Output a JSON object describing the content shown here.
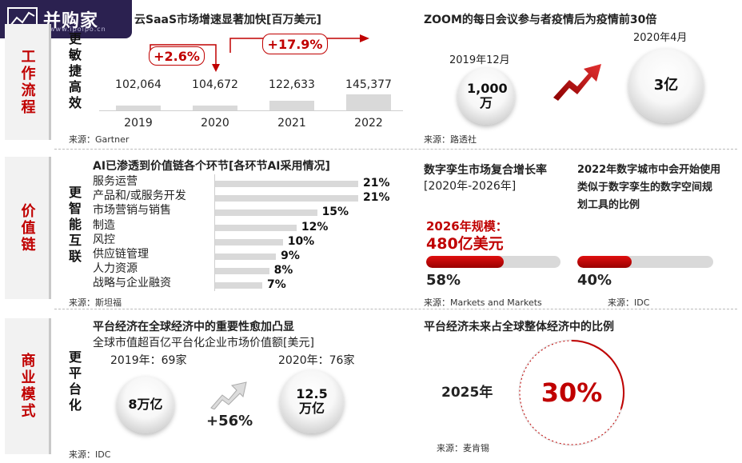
{
  "logo": {
    "text": "并购家",
    "url": "www.ipoipo.cn"
  },
  "sections": {
    "workflow": {
      "tab": "工作流程",
      "vertical": "更敏捷高效"
    },
    "value_chain": {
      "tab": "价值链",
      "vertical": "更智能互联"
    },
    "business": {
      "tab": "商业模式",
      "vertical": "更平台化"
    }
  },
  "saas": {
    "title": "云SaaS市场增速显著加快[百万美元]",
    "growth1": "+2.6%",
    "growth2": "+17.9%",
    "source": "来源：Gartner"
  },
  "zoom": {
    "title": "ZOOM的每日会议参与者疫情后为疫情前30倍",
    "date_before": "2019年12月",
    "date_after": "2020年4月",
    "value_before": "1,000万",
    "value_after": "3亿",
    "source": "来源：路透社"
  },
  "ai": {
    "title": "AI已渗透到价值链各个环节[各环节AI采用情况]",
    "source": "来源：斯坦福"
  },
  "twin": {
    "title": "数字孪生市场复合增长率",
    "period": "[2020年-2026年]",
    "scale_label": "2026年规模：",
    "scale_value": "480亿美元",
    "source": "来源：Markets and Markets"
  },
  "city": {
    "title": "2022年数字城市中会开始使用类似于数字孪生的数字空间规划工具的比例",
    "source": "来源：IDC"
  },
  "platform": {
    "title": "平台经济在全球经济中的重要性愈加凸显",
    "subtitle": "全球市值超百亿平台化企业市场价值额[美元]",
    "count_2019": "2019年：69家",
    "count_2020": "2020年：76家",
    "value_2019": "8万亿",
    "value_2020": "12.5万亿",
    "growth": "+56%",
    "source": "来源：IDC"
  },
  "share": {
    "title": "平台经济未来占全球整体经济中的比例",
    "year": "2025年",
    "source": "来源：麦肯锡"
  },
  "chart_data": [
    {
      "type": "bar",
      "title": "云SaaS市场增速显著加快[百万美元]",
      "categories": [
        "2019",
        "2020",
        "2021",
        "2022"
      ],
      "values": [
        102064,
        104672,
        122633,
        145377
      ],
      "labels": [
        "102,064",
        "104,672",
        "122,633",
        "145,377"
      ]
    },
    {
      "type": "bar",
      "orientation": "horizontal",
      "title": "AI已渗透到价值链各个环节[各环节AI采用情况]",
      "categories": [
        "服务运营",
        "产品和/或服务开发",
        "市场营销与销售",
        "制造",
        "风控",
        "供应链管理",
        "人力资源",
        "战略与企业融资"
      ],
      "values": [
        21,
        21,
        15,
        12,
        10,
        9,
        8,
        7
      ],
      "labels": [
        "21%",
        "21%",
        "15%",
        "12%",
        "10%",
        "9%",
        "8%",
        "7%"
      ]
    },
    {
      "type": "bar",
      "title": "数字孪生市场复合增长率",
      "values": [
        58
      ],
      "labels": [
        "58%"
      ]
    },
    {
      "type": "bar",
      "title": "2022年数字城市中会开始使用类似于数字孪生的数字空间规划工具的比例",
      "values": [
        40
      ],
      "labels": [
        "40%"
      ]
    },
    {
      "type": "pie",
      "title": "平台经济未来占全球整体经济中的比例",
      "values": [
        30
      ],
      "labels": [
        "30%"
      ]
    }
  ],
  "colors": {
    "accent": "#c00000",
    "bar": "#d9d9d9",
    "logo_bg": "#2b2150"
  }
}
